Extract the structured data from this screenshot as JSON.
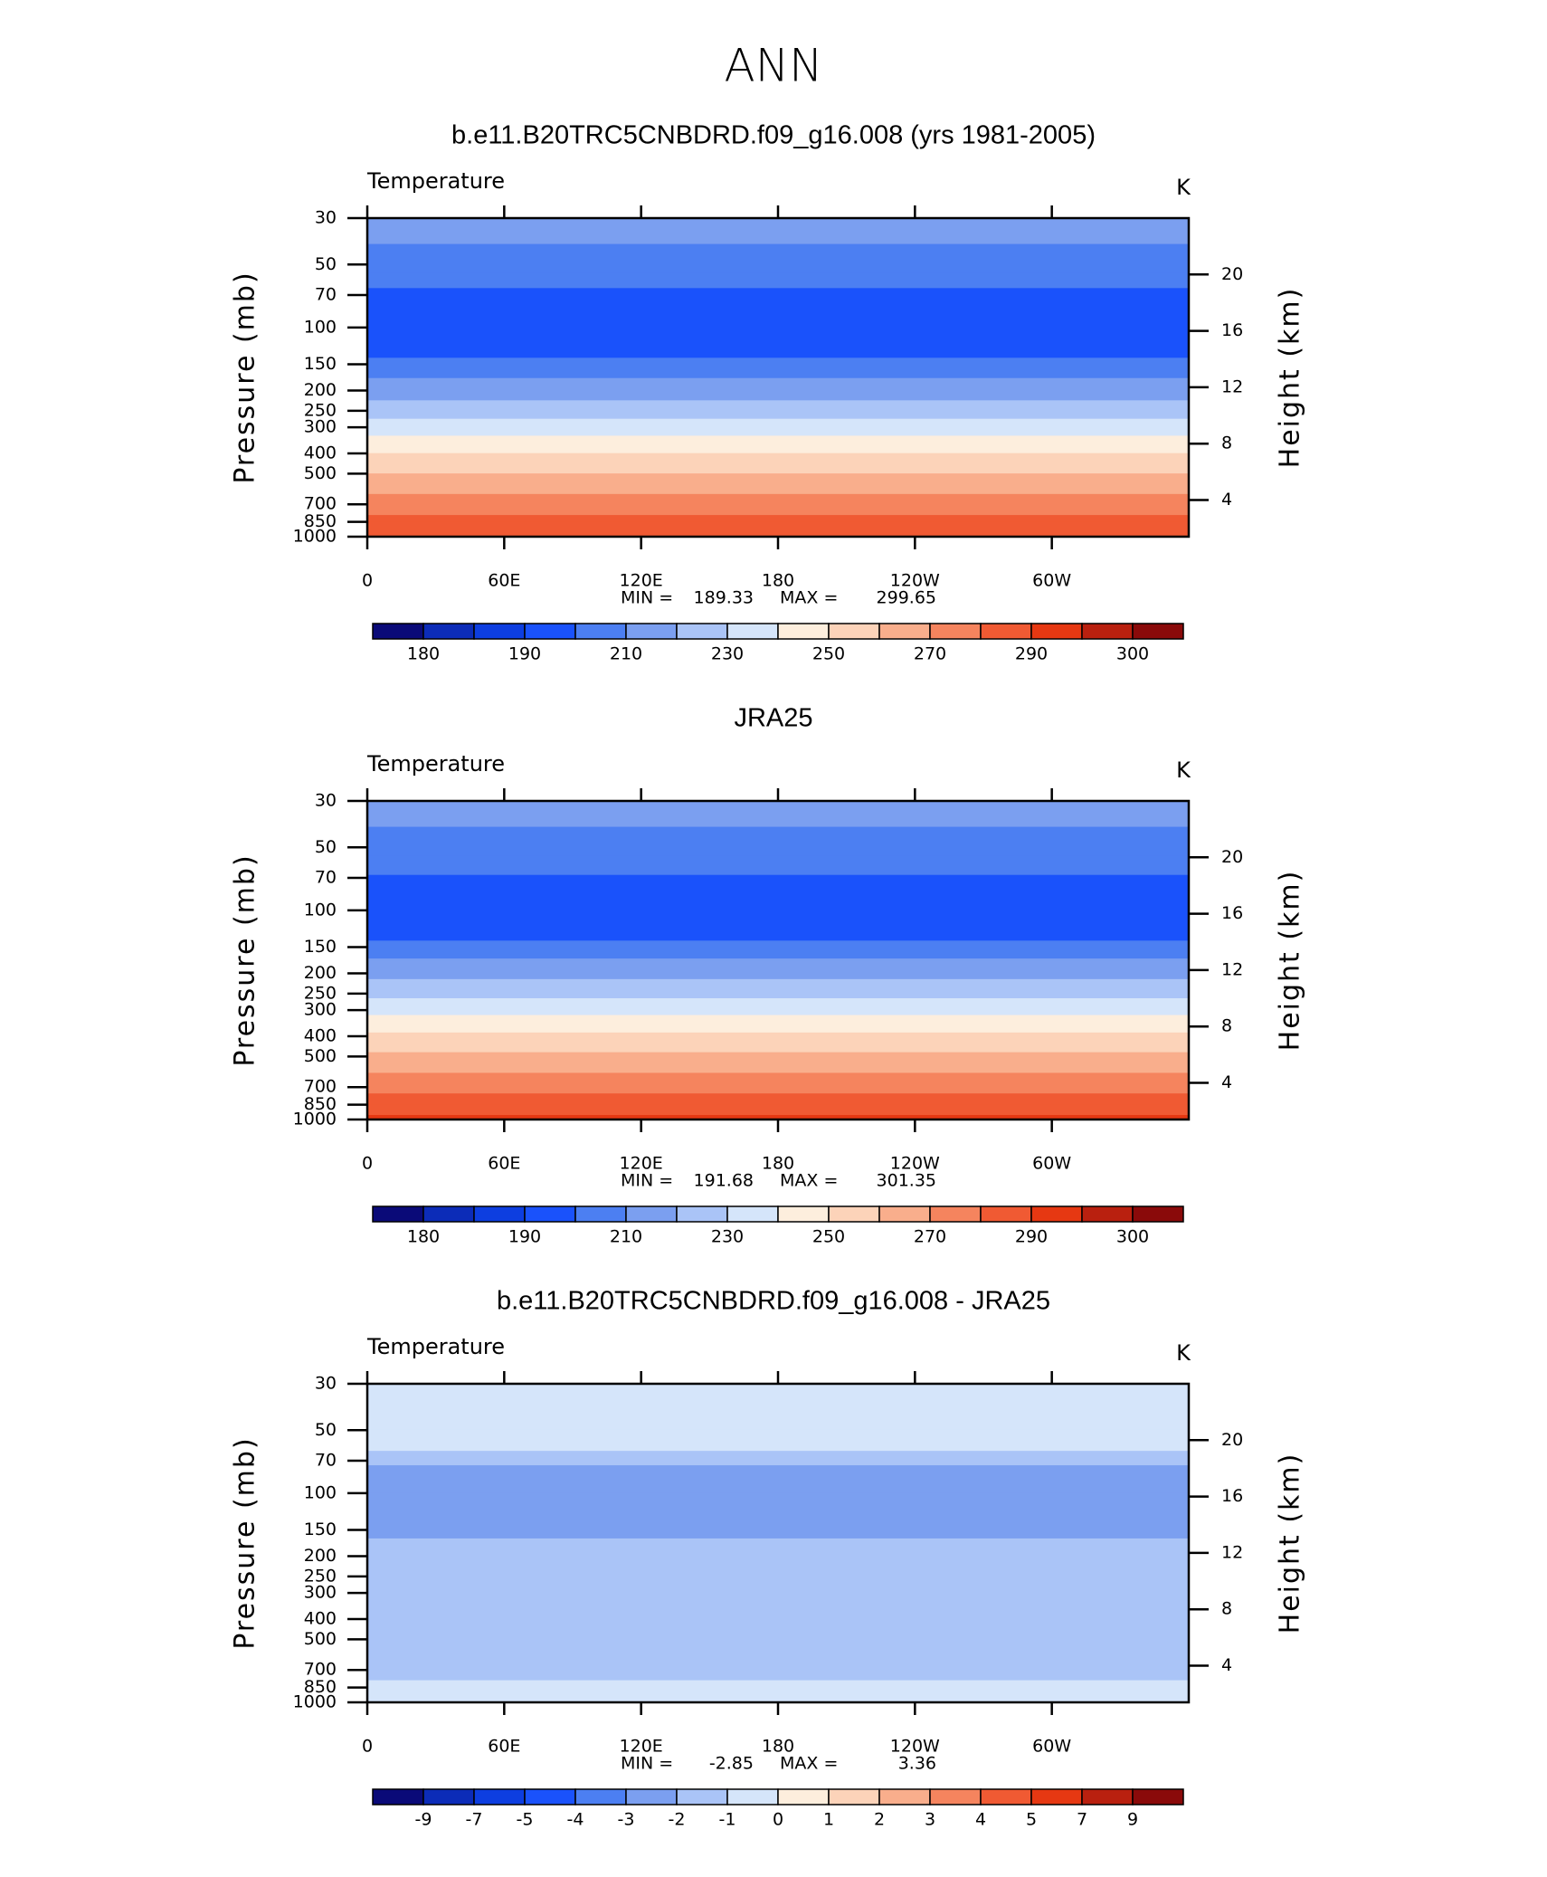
{
  "title": "ANN",
  "chart_data": [
    {
      "type": "contour",
      "title": "b.e11.B20TRC5CNBDRD.f09_g16.008 (yrs 1981-2005)",
      "subtitle": "Temperature",
      "units": "K",
      "ylabel": "Pressure (mb)",
      "y2label": "Height (km)",
      "log_y": true,
      "xlim": [
        0,
        360
      ],
      "xticks": [
        0,
        {
          "value": 60,
          "label": "60E"
        },
        {
          "value": 120,
          "label": "120E"
        },
        180,
        {
          "value": 240,
          "label": "120W"
        },
        {
          "value": 300,
          "label": "60W"
        }
      ],
      "ylim": [
        1000,
        30
      ],
      "yticks": [
        30,
        50,
        70,
        100,
        150,
        200,
        250,
        300,
        400,
        500,
        700,
        850,
        1000
      ],
      "y2lim": [
        1.4,
        24
      ],
      "y2ticks": [
        4,
        8,
        12,
        16,
        20
      ],
      "field": {
        "pressure": [
          30,
          40,
          55,
          65,
          100,
          140,
          150,
          175,
          200,
          250,
          300,
          330,
          400,
          500,
          600,
          700,
          850,
          1000
        ],
        "values": [
          216,
          210,
          206,
          200,
          195,
          200,
          205,
          210,
          215,
          225,
          235,
          240,
          250,
          260,
          268,
          275,
          283,
          290
        ]
      },
      "stats": {
        "min_label": "MIN =",
        "min": 189.33,
        "max_label": "MAX =",
        "max": 299.65
      },
      "colorbar": {
        "levels": [
          180,
          {
            "value": 185,
            "label": null
          },
          190,
          {
            "value": 200,
            "label": null
          },
          210,
          {
            "value": 220,
            "label": null
          },
          230,
          {
            "value": 240,
            "label": null
          },
          250,
          {
            "value": 260,
            "label": null
          },
          270,
          {
            "value": 280,
            "label": null
          },
          290,
          {
            "value": 295,
            "label": null
          },
          300
        ],
        "colors": [
          "#0a0a78",
          "#0c2cb8",
          "#0d3ee0",
          "#1a52fb",
          "#4c7ff2",
          "#7b9ff0",
          "#aac4f7",
          "#d5e5fa",
          "#fdeedd",
          "#fcd3b9",
          "#f9ae8c",
          "#f5845e",
          "#f05a33",
          "#e63812",
          "#b9200f",
          "#8a0a0a"
        ]
      }
    },
    {
      "type": "contour",
      "title": "JRA25",
      "subtitle": "Temperature",
      "units": "K",
      "ylabel": "Pressure (mb)",
      "y2label": "Height (km)",
      "log_y": true,
      "xlim": [
        0,
        360
      ],
      "xticks": [
        0,
        {
          "value": 60,
          "label": "60E"
        },
        {
          "value": 120,
          "label": "120E"
        },
        180,
        {
          "value": 240,
          "label": "120W"
        },
        {
          "value": 300,
          "label": "60W"
        }
      ],
      "ylim": [
        1000,
        30
      ],
      "yticks": [
        30,
        50,
        70,
        100,
        150,
        200,
        250,
        300,
        400,
        500,
        700,
        850,
        1000
      ],
      "y2lim": [
        1.4,
        24
      ],
      "y2ticks": [
        4,
        8,
        12,
        16,
        20
      ],
      "field": {
        "pressure": [
          30,
          40,
          55,
          70,
          100,
          140,
          150,
          175,
          200,
          250,
          300,
          330,
          400,
          500,
          600,
          700,
          850,
          1000
        ],
        "values": [
          217,
          210,
          207,
          199,
          195,
          200,
          205,
          211,
          217,
          227,
          237,
          242,
          252,
          262,
          270,
          277,
          285,
          292
        ]
      },
      "stats": {
        "min_label": "MIN =",
        "min": 191.68,
        "max_label": "MAX =",
        "max": 301.35
      },
      "colorbar": {
        "levels": [
          180,
          {
            "value": 185,
            "label": null
          },
          190,
          {
            "value": 200,
            "label": null
          },
          210,
          {
            "value": 220,
            "label": null
          },
          230,
          {
            "value": 240,
            "label": null
          },
          250,
          {
            "value": 260,
            "label": null
          },
          270,
          {
            "value": 280,
            "label": null
          },
          290,
          {
            "value": 295,
            "label": null
          },
          300
        ],
        "colors": [
          "#0a0a78",
          "#0c2cb8",
          "#0d3ee0",
          "#1a52fb",
          "#4c7ff2",
          "#7b9ff0",
          "#aac4f7",
          "#d5e5fa",
          "#fdeedd",
          "#fcd3b9",
          "#f9ae8c",
          "#f5845e",
          "#f05a33",
          "#e63812",
          "#b9200f",
          "#8a0a0a"
        ]
      }
    },
    {
      "type": "contour",
      "title": "b.e11.B20TRC5CNBDRD.f09_g16.008 - JRA25",
      "subtitle": "Temperature",
      "units": "K",
      "ylabel": "Pressure (mb)",
      "y2label": "Height (km)",
      "log_y": true,
      "xlim": [
        0,
        360
      ],
      "xticks": [
        0,
        {
          "value": 60,
          "label": "60E"
        },
        {
          "value": 120,
          "label": "120E"
        },
        180,
        {
          "value": 240,
          "label": "120W"
        },
        {
          "value": 300,
          "label": "60W"
        }
      ],
      "ylim": [
        1000,
        30
      ],
      "yticks": [
        30,
        50,
        70,
        100,
        150,
        200,
        250,
        300,
        400,
        500,
        700,
        850,
        1000
      ],
      "y2lim": [
        1.4,
        24
      ],
      "y2ticks": [
        4,
        8,
        12,
        16,
        20
      ],
      "field": {
        "pressure": [
          30,
          50,
          62,
          75,
          100,
          150,
          200,
          300,
          400,
          500,
          700,
          850,
          1000
        ],
        "values": [
          -0.5,
          -0.7,
          -0.9,
          -2.1,
          -2.2,
          -2.1,
          -1.8,
          -1.6,
          -1.5,
          -1.4,
          -1.3,
          -0.8,
          -0.5
        ]
      },
      "stats": {
        "min_label": "MIN =",
        "min": -2.85,
        "max_label": "MAX =",
        "max": 3.36
      },
      "colorbar": {
        "levels": [
          -9,
          -7,
          -5,
          -4,
          -3,
          -2,
          -1,
          0,
          1,
          2,
          3,
          4,
          5,
          7,
          9
        ],
        "colors": [
          "#0a0a78",
          "#0c2cb8",
          "#0d3ee0",
          "#1a52fb",
          "#4c7ff2",
          "#7b9ff0",
          "#aac4f7",
          "#d5e5fa",
          "#fdeedd",
          "#fcd3b9",
          "#f9ae8c",
          "#f5845e",
          "#f05a33",
          "#e63812",
          "#b9200f",
          "#8a0a0a"
        ]
      }
    }
  ]
}
